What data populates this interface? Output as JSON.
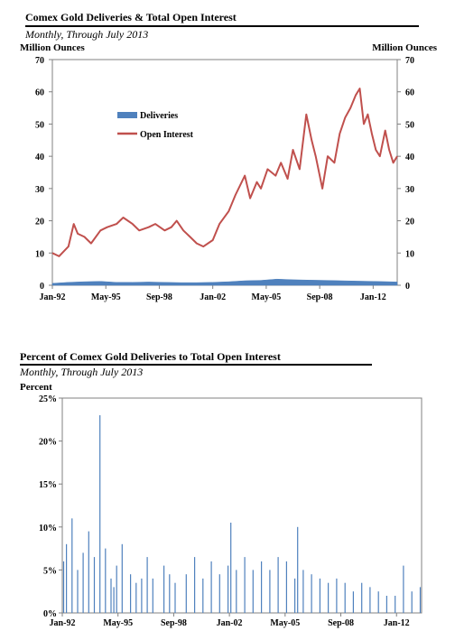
{
  "chart_data": [
    {
      "type": "line",
      "title": "Comex Gold Deliveries & Total Open Interest",
      "subtitle": "Monthly, Through July 2013",
      "ylabel_left": "Million Ounces",
      "ylabel_right": "Million Ounces",
      "ylim": [
        0,
        70
      ],
      "y_ticks": [
        "0",
        "10",
        "20",
        "30",
        "40",
        "50",
        "60",
        "70"
      ],
      "x_range": [
        "1992-01",
        "2013-07"
      ],
      "x_tick_labels": [
        "Jan-92",
        "May-95",
        "Sep-98",
        "Jan-02",
        "May-05",
        "Sep-08",
        "Jan-12"
      ],
      "grid": false,
      "legend_position": "center-left",
      "series": [
        {
          "name": "Deliveries",
          "style": "area",
          "color": "#4f81bd",
          "x": [
            "1992-01",
            "1993-01",
            "1994-01",
            "1995-01",
            "1996-01",
            "1997-01",
            "1998-01",
            "1999-01",
            "2000-01",
            "2001-01",
            "2002-01",
            "2003-01",
            "2004-01",
            "2005-01",
            "2006-01",
            "2007-01",
            "2008-01",
            "2009-01",
            "2010-01",
            "2011-01",
            "2012-01",
            "2013-01",
            "2013-07"
          ],
          "y": [
            0.6,
            0.9,
            1.1,
            1.2,
            0.9,
            0.9,
            1.0,
            0.9,
            0.8,
            0.8,
            0.9,
            1.1,
            1.4,
            1.5,
            1.9,
            1.7,
            1.6,
            1.5,
            1.4,
            1.3,
            1.2,
            1.1,
            1.0
          ]
        },
        {
          "name": "Open Interest",
          "style": "line",
          "color": "#c0504d",
          "x": [
            "1992-01",
            "1992-06",
            "1993-01",
            "1993-05",
            "1993-08",
            "1994-01",
            "1994-06",
            "1995-01",
            "1995-06",
            "1996-01",
            "1996-06",
            "1997-01",
            "1997-06",
            "1998-01",
            "1998-06",
            "1999-01",
            "1999-06",
            "1999-10",
            "2000-03",
            "2000-08",
            "2001-01",
            "2001-06",
            "2002-01",
            "2002-06",
            "2003-01",
            "2003-06",
            "2004-01",
            "2004-05",
            "2004-10",
            "2005-01",
            "2005-06",
            "2005-12",
            "2006-04",
            "2006-09",
            "2007-01",
            "2007-06",
            "2007-11",
            "2008-03",
            "2008-06",
            "2008-11",
            "2009-03",
            "2009-08",
            "2009-12",
            "2010-04",
            "2010-08",
            "2010-12",
            "2011-03",
            "2011-06",
            "2011-09",
            "2011-12",
            "2012-03",
            "2012-06",
            "2012-10",
            "2013-01",
            "2013-04",
            "2013-07"
          ],
          "y": [
            10,
            9,
            12,
            19,
            16,
            15,
            13,
            17,
            18,
            19,
            21,
            19,
            17,
            18,
            19,
            17,
            18,
            20,
            17,
            15,
            13,
            12,
            14,
            19,
            23,
            28,
            34,
            27,
            32,
            30,
            36,
            34,
            38,
            33,
            42,
            36,
            53,
            45,
            40,
            30,
            40,
            38,
            47,
            52,
            55,
            59,
            61,
            50,
            53,
            47,
            42,
            40,
            48,
            42,
            38,
            40
          ]
        }
      ]
    },
    {
      "type": "bar",
      "title": "Percent of Comex Gold Deliveries to Total Open Interest",
      "subtitle": "Monthly, Through July 2013",
      "ylabel": "Percent",
      "ylim": [
        0,
        25
      ],
      "y_ticks": [
        "0%",
        "5%",
        "10%",
        "15%",
        "20%",
        "25%"
      ],
      "x_range": [
        "1992-01",
        "2013-07"
      ],
      "x_tick_labels": [
        "Jan-92",
        "May-95",
        "Sep-98",
        "Jan-02",
        "May-05",
        "Sep-08",
        "Jan-12"
      ],
      "grid": false,
      "color": "#4f81bd",
      "x": [
        "1992-02",
        "1992-04",
        "1992-08",
        "1992-12",
        "1993-04",
        "1993-08",
        "1993-12",
        "1994-04",
        "1994-08",
        "1994-12",
        "1995-02",
        "1995-04",
        "1995-08",
        "1996-02",
        "1996-06",
        "1996-10",
        "1997-02",
        "1997-06",
        "1998-02",
        "1998-06",
        "1998-10",
        "1999-06",
        "1999-12",
        "2000-06",
        "2000-12",
        "2001-06",
        "2001-12",
        "2002-02",
        "2002-06",
        "2002-12",
        "2003-06",
        "2003-12",
        "2004-06",
        "2004-12",
        "2005-06",
        "2005-12",
        "2006-02",
        "2006-06",
        "2006-12",
        "2007-06",
        "2007-12",
        "2008-06",
        "2008-12",
        "2009-06",
        "2009-12",
        "2010-06",
        "2010-12",
        "2011-06",
        "2011-12",
        "2012-06",
        "2012-12",
        "2013-06"
      ],
      "values": [
        6.0,
        8.0,
        11.0,
        5.0,
        7.0,
        9.5,
        6.5,
        23.0,
        7.5,
        4.0,
        3.0,
        5.5,
        8.0,
        4.5,
        3.5,
        4.0,
        6.5,
        4.0,
        5.5,
        4.5,
        3.5,
        4.5,
        6.5,
        4.0,
        6.0,
        4.5,
        5.5,
        10.5,
        5.0,
        6.5,
        5.0,
        6.0,
        5.0,
        6.5,
        6.0,
        4.0,
        10.0,
        5.0,
        4.5,
        4.0,
        3.5,
        4.0,
        3.5,
        2.5,
        3.5,
        3.0,
        2.5,
        2.0,
        2.0,
        5.5,
        2.5,
        3.0
      ]
    }
  ]
}
